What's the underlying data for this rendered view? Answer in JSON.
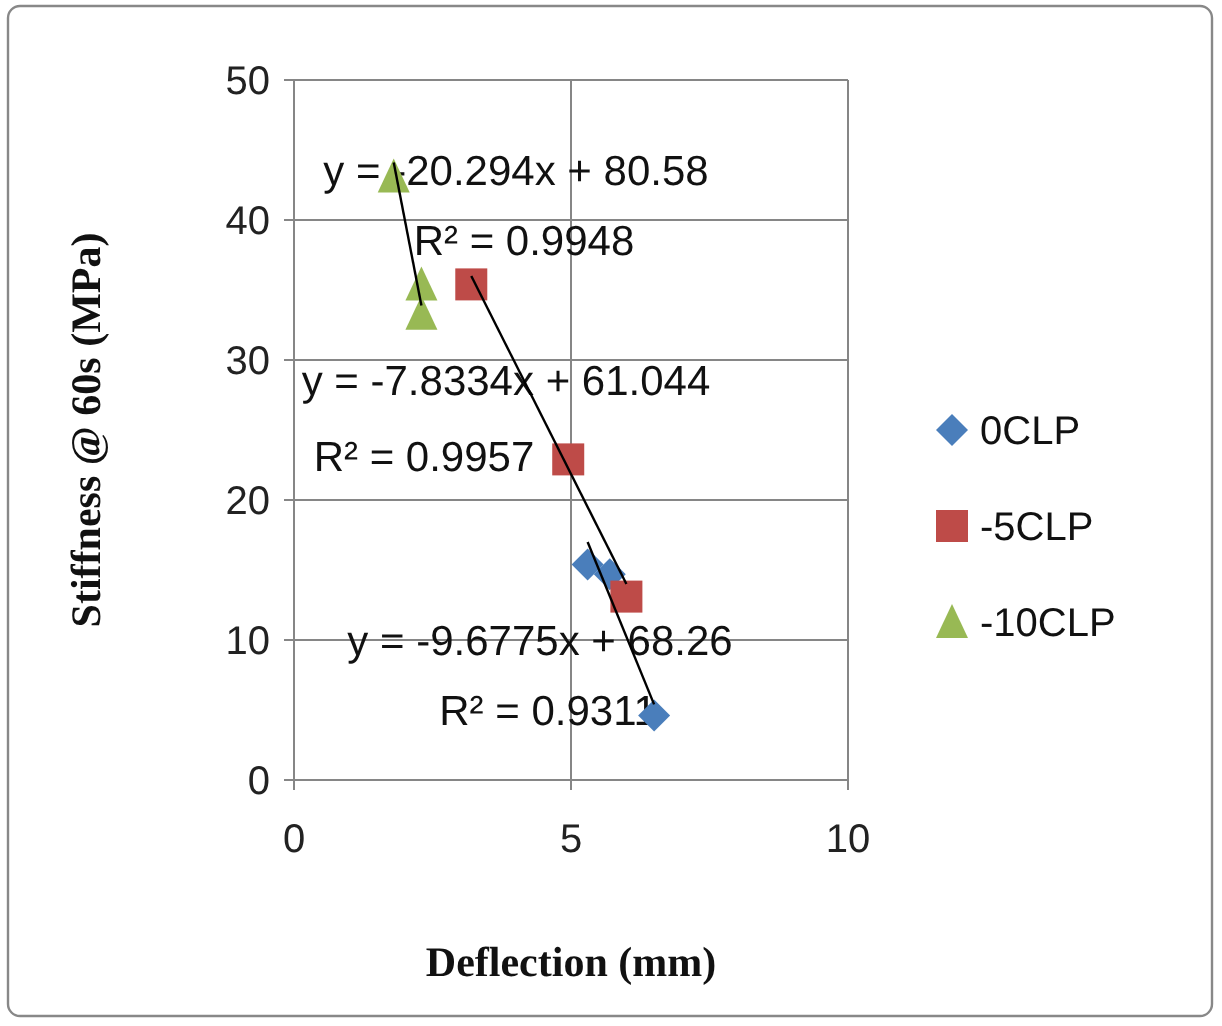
{
  "chart_data": {
    "type": "scatter",
    "xlabel": "Deflection (mm)",
    "ylabel": "Stiffness @ 60s (MPa)",
    "xlim": [
      0,
      10
    ],
    "xticks": [
      0,
      5,
      10
    ],
    "ylim": [
      0,
      50
    ],
    "yticks": [
      0,
      10,
      20,
      30,
      40,
      50
    ],
    "grid": true,
    "legend": "right",
    "series": [
      {
        "name": "0CLP",
        "color": "#4a7ebb",
        "marker": "diamond",
        "x": [
          5.3,
          5.7,
          6.5
        ],
        "values": [
          15.4,
          14.7,
          4.6
        ]
      },
      {
        "name": "-5CLP",
        "color": "#be4b48",
        "marker": "square",
        "x": [
          3.2,
          4.95,
          6.0
        ],
        "values": [
          35.4,
          22.9,
          13.1
        ]
      },
      {
        "name": "-10CLP",
        "color": "#98b954",
        "marker": "triangle",
        "x": [
          1.8,
          2.3,
          2.3
        ],
        "values": [
          43.1,
          35.4,
          33.3
        ]
      },
      {
        "type": "line",
        "color": "#000000",
        "marker": "none",
        "x": [
          5.3,
          6.5
        ],
        "values": [
          17.0,
          5.4
        ]
      },
      {
        "type": "line",
        "color": "#000000",
        "marker": "none",
        "x": [
          3.2,
          6.0
        ],
        "values": [
          36.0,
          14.0
        ]
      },
      {
        "type": "line",
        "color": "#000000",
        "marker": "none",
        "x": [
          1.8,
          2.3
        ],
        "values": [
          44.1,
          33.9
        ]
      }
    ],
    "annotations": [
      "y = -20.294x + 80.58",
      "R² = 0.9948",
      "y = -7.8334x + 61.044",
      "R² = 0.9957",
      "y = -9.6775x + 68.26",
      "R² = 0.9311"
    ]
  }
}
